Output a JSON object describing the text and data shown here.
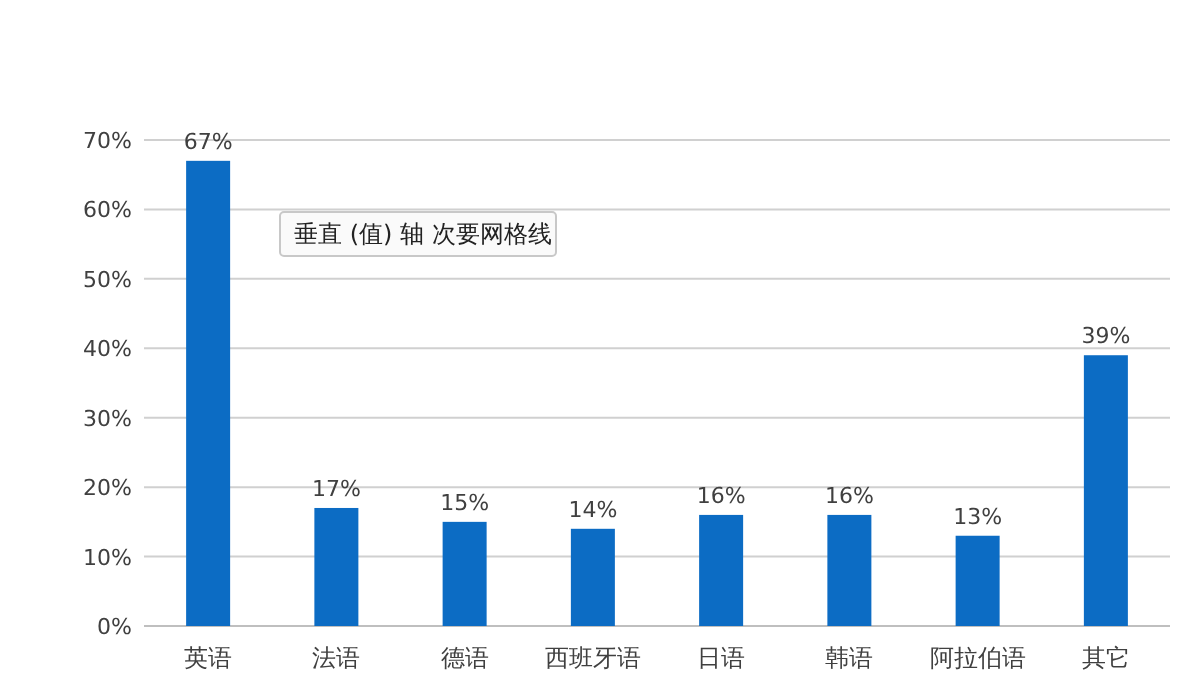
{
  "chart_data": {
    "type": "bar",
    "categories": [
      "英语",
      "法语",
      "德语",
      "西班牙语",
      "日语",
      "韩语",
      "阿拉伯语",
      "其它"
    ],
    "values": [
      67,
      17,
      15,
      14,
      16,
      16,
      13,
      39
    ],
    "value_labels": [
      "67%",
      "17%",
      "15%",
      "14%",
      "16%",
      "16%",
      "13%",
      "39%"
    ],
    "color": "#0c6cc4",
    "ylim": [
      0,
      70
    ],
    "yticks": [
      {
        "value": 0,
        "label": "0%"
      },
      {
        "value": 10,
        "label": "10%"
      },
      {
        "value": 20,
        "label": "20%"
      },
      {
        "value": 30,
        "label": "30%"
      },
      {
        "value": 40,
        "label": "40%"
      },
      {
        "value": 50,
        "label": "50%"
      },
      {
        "value": 60,
        "label": "60%"
      },
      {
        "value": 70,
        "label": "70%"
      }
    ],
    "grid": true,
    "annotations": [
      "垂直 (值) 轴 次要网格线"
    ]
  }
}
